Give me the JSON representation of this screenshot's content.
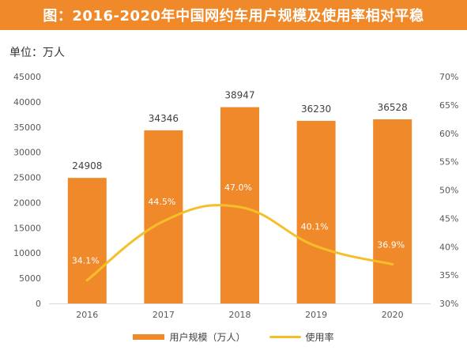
{
  "header": {
    "title": "图：2016-2020年中国网约车用户规模及使用率相对平稳"
  },
  "unit": "单位：万人",
  "colors": {
    "title_bg": "#f0892a",
    "bar": "#f0892a",
    "line": "#f6bf2a"
  },
  "chart_data": {
    "type": "bar",
    "categories": [
      "2016",
      "2017",
      "2018",
      "2019",
      "2020"
    ],
    "series": [
      {
        "name": "用户规模（万人）",
        "type": "bar",
        "axis": "left",
        "values": [
          24908,
          34346,
          38947,
          36230,
          36528
        ],
        "labels": [
          "24908",
          "34346",
          "38947",
          "36230",
          "36528"
        ]
      },
      {
        "name": "使用率",
        "type": "line",
        "axis": "right",
        "values": [
          34.1,
          44.5,
          47.0,
          40.1,
          36.9
        ],
        "labels": [
          "34.1%",
          "44.5%",
          "47.0%",
          "40.1%",
          "36.9%"
        ]
      }
    ],
    "y_left": {
      "range": [
        0,
        45000
      ],
      "ticks": [
        "0",
        "5000",
        "10000",
        "15000",
        "20000",
        "25000",
        "30000",
        "35000",
        "40000",
        "45000"
      ]
    },
    "y_right": {
      "range": [
        30,
        70
      ],
      "ticks": [
        "30%",
        "35%",
        "40%",
        "45%",
        "50%",
        "55%",
        "60%",
        "65%",
        "70%"
      ]
    },
    "grid": false,
    "legend_position": "bottom"
  }
}
